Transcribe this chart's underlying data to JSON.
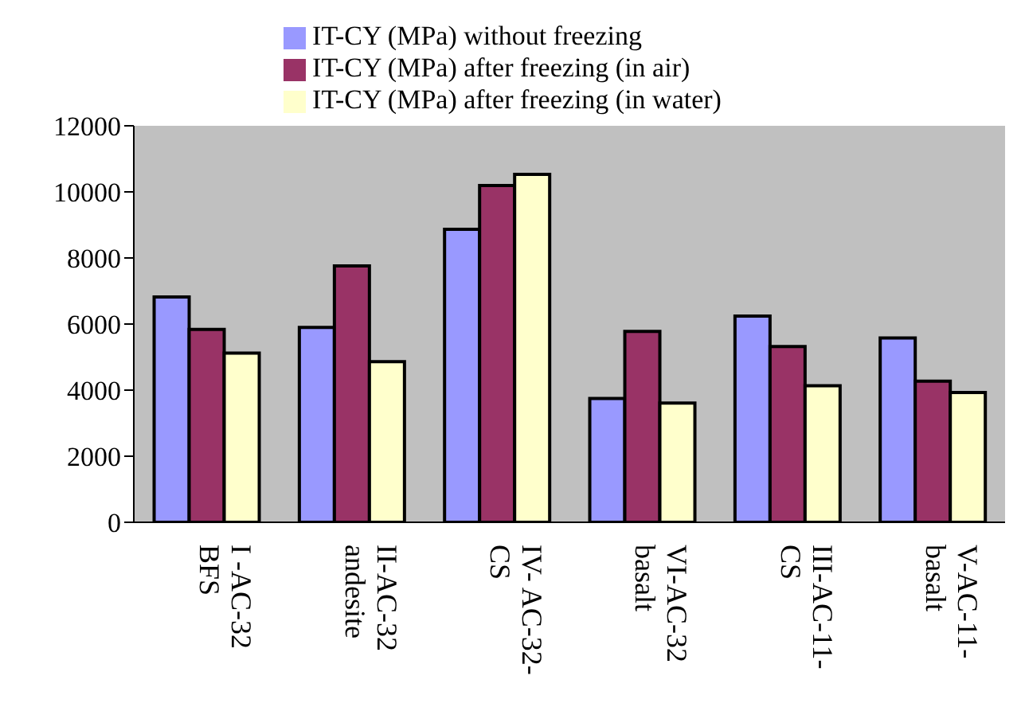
{
  "chart_data": {
    "type": "bar",
    "categories": [
      "I -AC-32\nBFS",
      "II-AC-32\nandesite",
      "IV- AC-32-\nCS",
      "VI-AC-32\nbasalt",
      "III-AC-11-\nCS",
      "V-AC-11-\nbasalt"
    ],
    "series": [
      {
        "name": "IT-CY (MPa) without freezing",
        "color": "#9999ff",
        "values": [
          6820,
          5900,
          8870,
          3750,
          6240,
          5580
        ]
      },
      {
        "name": "IT-CY (MPa) after freezing (in air)",
        "color": "#993366",
        "values": [
          5840,
          7760,
          10190,
          5780,
          5320,
          4270
        ]
      },
      {
        "name": "IT-CY (MPa) after freezing (in water)",
        "color": "#ffffcc",
        "values": [
          5120,
          4860,
          10530,
          3610,
          4130,
          3930
        ]
      }
    ],
    "ylim": [
      0,
      12000
    ],
    "yticks": [
      0,
      2000,
      4000,
      6000,
      8000,
      10000,
      12000
    ],
    "grid": false,
    "legend": "top"
  }
}
